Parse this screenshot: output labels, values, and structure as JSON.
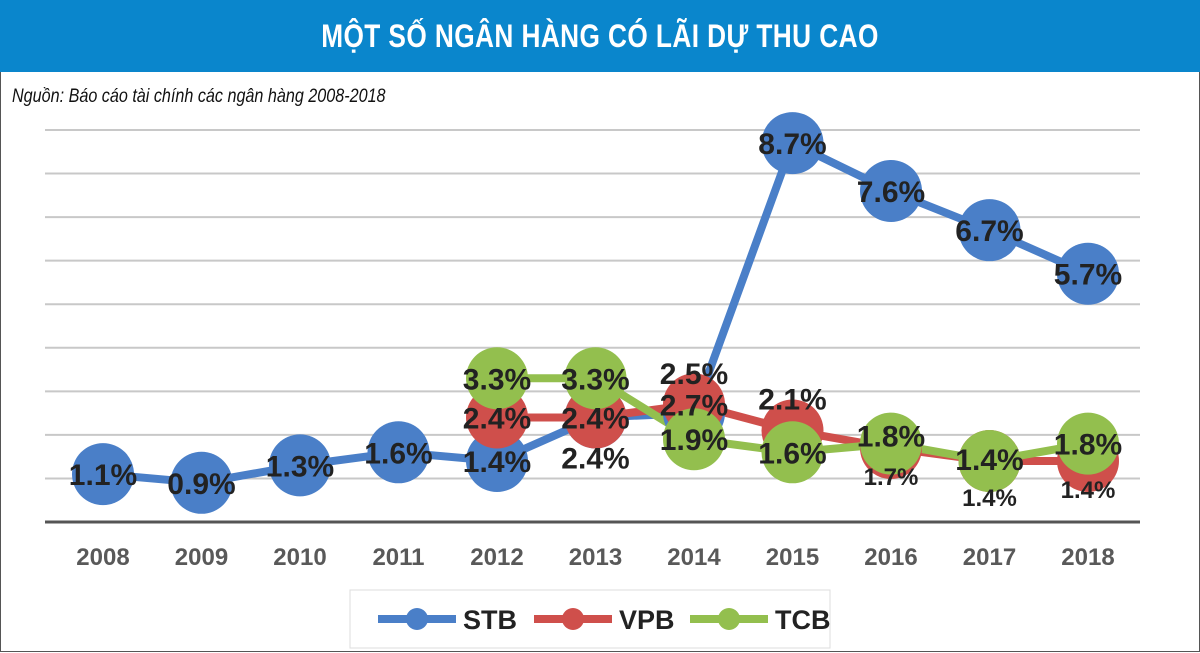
{
  "chart_data": {
    "type": "line",
    "title": "MỘT SỐ NGÂN HÀNG CÓ LÃI DỰ THU CAO",
    "subtitle": "Nguồn: Báo cáo tài chính các ngân hàng 2008-2018",
    "categories": [
      "2008",
      "2009",
      "2010",
      "2011",
      "2012",
      "2013",
      "2014",
      "2015",
      "2016",
      "2017",
      "2018"
    ],
    "ylim": [
      0,
      9
    ],
    "grid": true,
    "legend_position": "bottom",
    "series": [
      {
        "name": "STB",
        "color": "#4a7fc8",
        "values": [
          1.1,
          0.9,
          1.3,
          1.6,
          1.4,
          2.4,
          2.5,
          8.7,
          7.6,
          6.7,
          5.7
        ],
        "labels": [
          "1.1%",
          "0.9%",
          "1.3%",
          "1.6%",
          "1.4%",
          "2.4%",
          "2.5%",
          "8.7%",
          "7.6%",
          "6.7%",
          "5.7%"
        ]
      },
      {
        "name": "VPB",
        "color": "#cf4f4b",
        "values": [
          null,
          null,
          null,
          null,
          2.4,
          2.4,
          2.7,
          2.1,
          1.7,
          1.4,
          1.4
        ],
        "labels": [
          null,
          null,
          null,
          null,
          "2.4%",
          "2.4%",
          "2.7%",
          "2.1%",
          "1.7%",
          "1.4%",
          "1.4%"
        ]
      },
      {
        "name": "TCB",
        "color": "#93bf4e",
        "values": [
          null,
          null,
          null,
          null,
          3.3,
          3.3,
          1.9,
          1.6,
          1.8,
          1.4,
          1.8
        ],
        "labels": [
          null,
          null,
          null,
          null,
          "3.3%",
          "3.3%",
          "1.9%",
          "1.6%",
          "1.8%",
          "1.4%",
          "1.8%"
        ]
      }
    ]
  }
}
